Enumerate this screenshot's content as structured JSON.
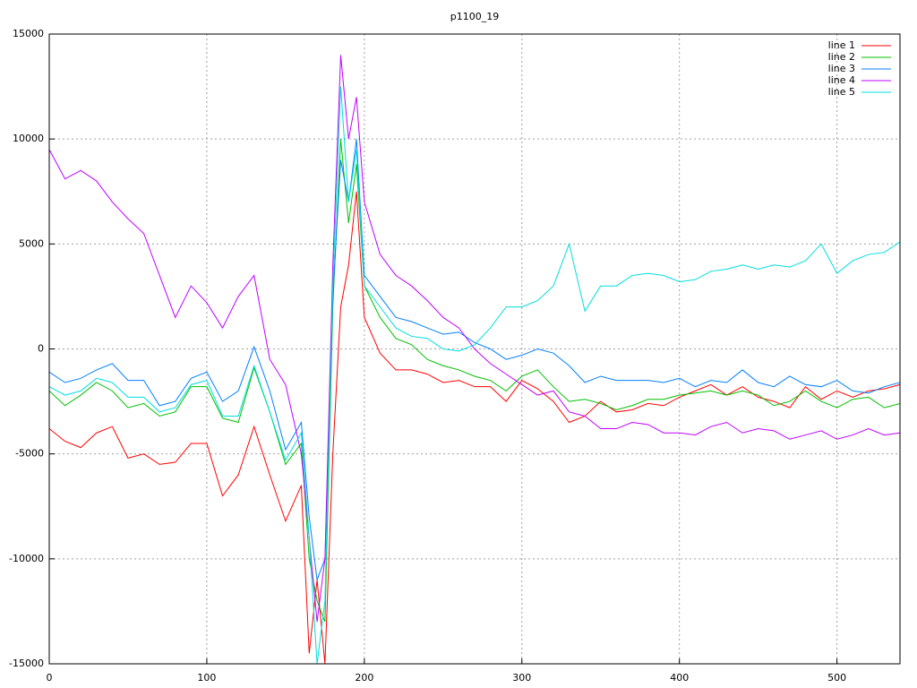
{
  "chart_data": {
    "type": "line",
    "title": "p1100_19",
    "x": [
      0,
      10,
      20,
      30,
      40,
      50,
      60,
      70,
      80,
      90,
      100,
      110,
      120,
      130,
      140,
      150,
      160,
      165,
      170,
      175,
      180,
      185,
      190,
      195,
      200,
      210,
      220,
      230,
      240,
      250,
      260,
      270,
      280,
      290,
      300,
      310,
      320,
      330,
      340,
      350,
      360,
      370,
      380,
      390,
      400,
      410,
      420,
      430,
      440,
      450,
      460,
      470,
      480,
      490,
      500,
      510,
      520,
      530,
      540
    ],
    "series": [
      {
        "name": "line 1",
        "color": "#ff0000",
        "values": [
          -3800,
          -4400,
          -4700,
          -4000,
          -3700,
          -5200,
          -5000,
          -5500,
          -5400,
          -4500,
          -4500,
          -7000,
          -6000,
          -3700,
          -6000,
          -8200,
          -6500,
          -14500,
          -11000,
          -15000,
          -5000,
          2000,
          4000,
          7500,
          1500,
          -200,
          -1000,
          -1000,
          -1200,
          -1600,
          -1500,
          -1800,
          -1800,
          -2500,
          -1500,
          -1900,
          -2500,
          -3500,
          -3200,
          -2500,
          -3000,
          -2900,
          -2600,
          -2700,
          -2300,
          -2000,
          -1700,
          -2200,
          -1800,
          -2300,
          -2500,
          -2800,
          -1800,
          -2400,
          -2000,
          -2300,
          -2000,
          -1900,
          -1700
        ]
      },
      {
        "name": "line 2",
        "color": "#00c000",
        "values": [
          -2000,
          -2700,
          -2200,
          -1600,
          -2000,
          -2800,
          -2600,
          -3200,
          -3000,
          -1800,
          -1800,
          -3300,
          -3500,
          -900,
          -3000,
          -5500,
          -4500,
          -10000,
          -12000,
          -13000,
          2000,
          10000,
          6000,
          8800,
          3000,
          1500,
          500,
          200,
          -500,
          -800,
          -1000,
          -1300,
          -1500,
          -2000,
          -1300,
          -1000,
          -1800,
          -2500,
          -2400,
          -2600,
          -2900,
          -2700,
          -2400,
          -2400,
          -2200,
          -2100,
          -2000,
          -2200,
          -2000,
          -2200,
          -2700,
          -2500,
          -2000,
          -2500,
          -2800,
          -2400,
          -2300,
          -2800,
          -2600
        ]
      },
      {
        "name": "line 3",
        "color": "#0080ff",
        "values": [
          -1100,
          -1600,
          -1400,
          -1000,
          -700,
          -1500,
          -1500,
          -2700,
          -2500,
          -1400,
          -1100,
          -2500,
          -2000,
          100,
          -2000,
          -4800,
          -3500,
          -8000,
          -11000,
          -10000,
          2500,
          9000,
          7000,
          10000,
          3500,
          2500,
          1500,
          1300,
          1000,
          700,
          800,
          300,
          0,
          -500,
          -300,
          0,
          -200,
          -800,
          -1600,
          -1300,
          -1500,
          -1500,
          -1500,
          -1600,
          -1400,
          -1800,
          -1500,
          -1600,
          -1000,
          -1600,
          -1800,
          -1300,
          -1700,
          -1800,
          -1500,
          -2000,
          -2100,
          -1800,
          -1600
        ]
      },
      {
        "name": "line 4",
        "color": "#c000ff",
        "values": [
          9500,
          8100,
          8500,
          8000,
          7000,
          6200,
          5500,
          3500,
          1500,
          3000,
          2200,
          1000,
          2500,
          3500,
          -500,
          -1700,
          -5000,
          -9000,
          -13000,
          -10000,
          4000,
          14000,
          10000,
          12000,
          7000,
          4500,
          3500,
          3000,
          2300,
          1500,
          1000,
          0,
          -700,
          -1200,
          -1700,
          -2200,
          -2000,
          -3000,
          -3200,
          -3800,
          -3800,
          -3500,
          -3600,
          -4000,
          -4000,
          -4100,
          -3700,
          -3500,
          -4000,
          -3800,
          -3900,
          -4300,
          -4100,
          -3900,
          -4300,
          -4100,
          -3800,
          -4100,
          -4000
        ]
      },
      {
        "name": "line 5",
        "color": "#00dddd",
        "values": [
          -1800,
          -2200,
          -2000,
          -1400,
          -1600,
          -2300,
          -2300,
          -3000,
          -2800,
          -1700,
          -1500,
          -3200,
          -3200,
          -800,
          -3000,
          -5300,
          -4000,
          -9000,
          -15000,
          -12000,
          3000,
          12500,
          7000,
          9500,
          3000,
          2000,
          1000,
          600,
          500,
          0,
          -100,
          200,
          1000,
          2000,
          2000,
          2300,
          3000,
          5000,
          1800,
          3000,
          3000,
          3500,
          3600,
          3500,
          3200,
          3300,
          3700,
          3800,
          4000,
          3800,
          4000,
          3900,
          4200,
          5000,
          3600,
          4200,
          4500,
          4600,
          5100
        ]
      }
    ],
    "xlim": [
      0,
      540
    ],
    "xticks": [
      0,
      100,
      200,
      300,
      400,
      500
    ],
    "ylim": [
      -15000,
      15000
    ],
    "yticks": [
      -15000,
      -10000,
      -5000,
      0,
      5000,
      10000,
      15000
    ],
    "grid": true,
    "legend": "top-right"
  }
}
